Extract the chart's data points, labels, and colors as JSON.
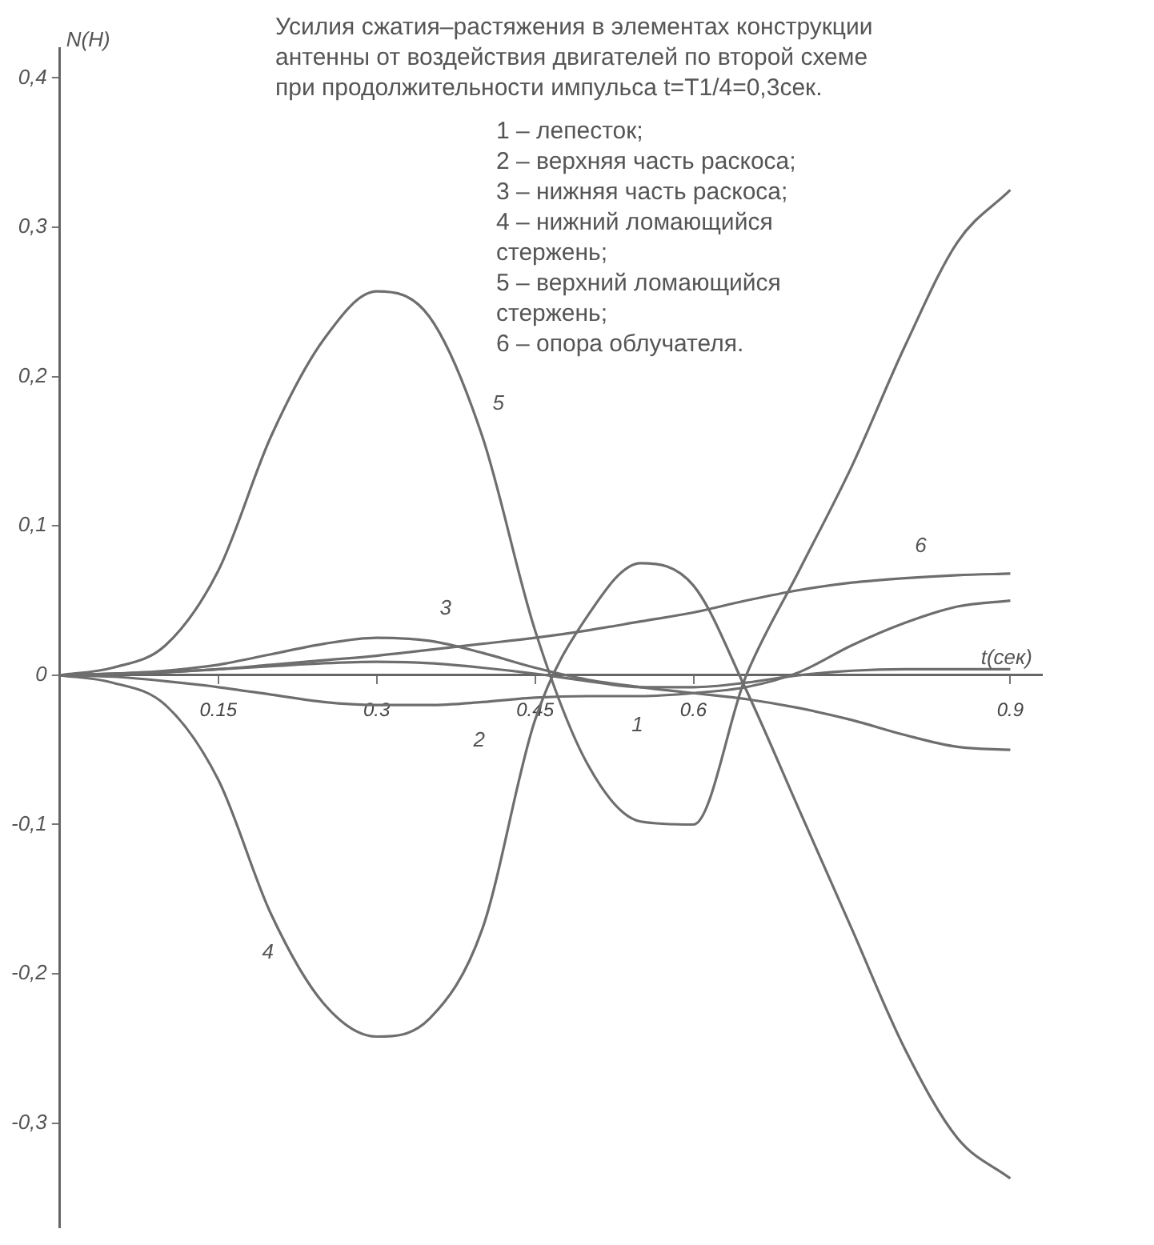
{
  "chart_data": {
    "type": "line",
    "title": "Усилия сжатия–растяжения в элементах конструкции\nантенны от воздействия двигателей по второй схеме\nпри продолжительности импульса t=T1/4=0,3сек.",
    "xlabel": "t(сек)",
    "ylabel": "N(H)",
    "x": [
      0,
      0.05,
      0.1,
      0.15,
      0.2,
      0.25,
      0.3,
      0.35,
      0.4,
      0.45,
      0.5,
      0.55,
      0.6,
      0.65,
      0.7,
      0.75,
      0.8,
      0.85,
      0.9
    ],
    "series": [
      {
        "color": "#6e6e6e",
        "values": [
          0,
          0.001,
          0.002,
          0.004,
          0.006,
          0.008,
          0.009,
          0.008,
          0.005,
          0.001,
          -0.004,
          -0.008,
          -0.008,
          -0.005,
          0,
          0.003,
          0.004,
          0.004,
          0.004
        ]
      },
      {
        "color": "#6e6e6e",
        "values": [
          0,
          -0.001,
          -0.004,
          -0.008,
          -0.013,
          -0.018,
          -0.02,
          -0.02,
          -0.018,
          -0.015,
          -0.014,
          -0.014,
          -0.012,
          -0.008,
          0.002,
          0.02,
          0.035,
          0.046,
          0.05
        ]
      },
      {
        "color": "#6e6e6e",
        "values": [
          0,
          0.001,
          0.003,
          0.007,
          0.014,
          0.021,
          0.025,
          0.023,
          0.015,
          0.005,
          -0.003,
          -0.008,
          -0.012,
          -0.016,
          -0.022,
          -0.03,
          -0.04,
          -0.048,
          -0.05
        ]
      },
      {
        "color": "#6e6e6e",
        "values": [
          0,
          -0.005,
          -0.02,
          -0.07,
          -0.16,
          -0.22,
          -0.242,
          -0.23,
          -0.17,
          -0.03,
          0.04,
          0.075,
          0.06,
          -0.01,
          -0.09,
          -0.17,
          -0.25,
          -0.31,
          -0.337
        ]
      },
      {
        "color": "#6e6e6e",
        "values": [
          0,
          0.005,
          0.02,
          0.07,
          0.16,
          0.225,
          0.257,
          0.24,
          0.16,
          0.03,
          -0.06,
          -0.098,
          -0.1,
          0,
          0.07,
          0.14,
          0.22,
          0.29,
          0.325
        ]
      },
      {
        "color": "#6e6e6e",
        "values": [
          0,
          0.001,
          0.002,
          0.004,
          0.007,
          0.01,
          0.013,
          0.017,
          0.021,
          0.025,
          0.03,
          0.036,
          0.042,
          0.05,
          0.057,
          0.062,
          0.065,
          0.067,
          0.068
        ]
      }
    ],
    "xlim": [
      0,
      0.93
    ],
    "ylim": [
      -0.37,
      0.42
    ],
    "xticks": [
      {
        "value": 0.15,
        "label": "0.15"
      },
      {
        "value": 0.3,
        "label": "0.3"
      },
      {
        "value": 0.45,
        "label": "0.45"
      },
      {
        "value": 0.6,
        "label": "0.6"
      },
      {
        "value": 0.9,
        "label": "0.9"
      }
    ],
    "yticks": [
      {
        "value": -0.3,
        "label": "-0,3"
      },
      {
        "value": -0.2,
        "label": "-0,2"
      },
      {
        "value": -0.1,
        "label": "-0,1"
      },
      0,
      {
        "value": 0.1,
        "label": "0,1"
      },
      {
        "value": 0.2,
        "label": "0,2"
      },
      {
        "value": 0.3,
        "label": "0,3"
      },
      {
        "value": 0.4,
        "label": "0,4"
      }
    ],
    "grid": false,
    "legend": false,
    "marker": "none",
    "line_style": "solid",
    "annotations": [
      "1 – лепесток;",
      "2 – верхняя часть раскоса;",
      "3 – нижняя часть раскоса;",
      "4 – нижний ломающийся стержень;",
      "5 – верхний ломающийся стержень;",
      "6 – опора облучателя.",
      {
        "text": "1",
        "x": 0.55,
        "y": -0.008
      },
      {
        "text": "2",
        "x": 0.4,
        "y": -0.018
      },
      {
        "text": "3",
        "x": 0.35,
        "y": 0.023
      },
      {
        "text": "4",
        "x": 0.2,
        "y": -0.16
      },
      {
        "text": "5",
        "x": 0.4,
        "y": 0.16
      },
      {
        "text": "6",
        "x": 0.8,
        "y": 0.065
      }
    ]
  }
}
